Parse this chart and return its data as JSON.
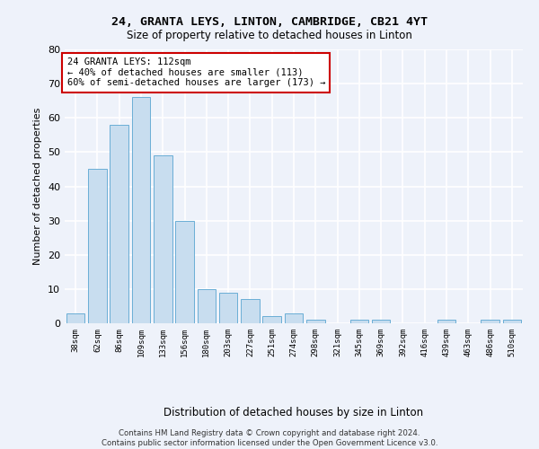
{
  "title": "24, GRANTA LEYS, LINTON, CAMBRIDGE, CB21 4YT",
  "subtitle": "Size of property relative to detached houses in Linton",
  "xlabel": "Distribution of detached houses by size in Linton",
  "ylabel": "Number of detached properties",
  "bar_color": "#c8ddef",
  "bar_edge_color": "#6aaed6",
  "background_color": "#eef2fa",
  "grid_color": "#ffffff",
  "categories": [
    "38sqm",
    "62sqm",
    "86sqm",
    "109sqm",
    "133sqm",
    "156sqm",
    "180sqm",
    "203sqm",
    "227sqm",
    "251sqm",
    "274sqm",
    "298sqm",
    "321sqm",
    "345sqm",
    "369sqm",
    "392sqm",
    "416sqm",
    "439sqm",
    "463sqm",
    "486sqm",
    "510sqm"
  ],
  "values": [
    3,
    45,
    58,
    66,
    49,
    30,
    10,
    9,
    7,
    2,
    3,
    1,
    0,
    1,
    1,
    0,
    0,
    1,
    0,
    1,
    1
  ],
  "ylim": [
    0,
    80
  ],
  "yticks": [
    0,
    10,
    20,
    30,
    40,
    50,
    60,
    70,
    80
  ],
  "annotation_line1": "24 GRANTA LEYS: 112sqm",
  "annotation_line2": "← 40% of detached houses are smaller (113)",
  "annotation_line3": "60% of semi-detached houses are larger (173) →",
  "annotation_box_facecolor": "#ffffff",
  "annotation_box_edgecolor": "#cc0000",
  "footnote1": "Contains HM Land Registry data © Crown copyright and database right 2024.",
  "footnote2": "Contains public sector information licensed under the Open Government Licence v3.0."
}
